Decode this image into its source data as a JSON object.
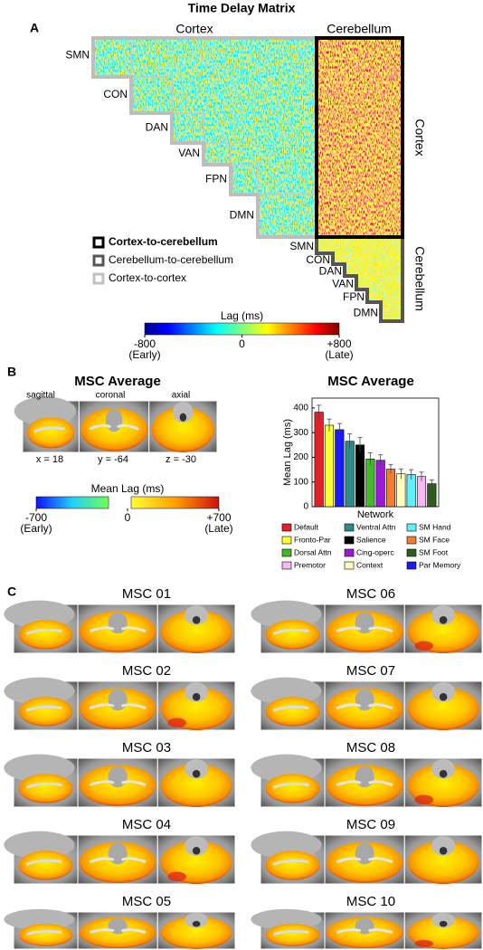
{
  "figure": {
    "title": "Time Delay Matrix",
    "panel_a": {
      "label": "A",
      "top_labels": [
        "Cortex",
        "Cerebellum"
      ],
      "side_labels": [
        "Cortex",
        "Cerebellum"
      ],
      "cortex_networks": [
        "SMN",
        "CON",
        "DAN",
        "VAN",
        "FPN",
        "DMN"
      ],
      "cerebellum_networks": [
        "SMN",
        "CON",
        "DAN",
        "VAN",
        "FPN",
        "DMN"
      ],
      "legend": [
        "Cortex-to-cerebellum",
        "Cerebellum-to-cerebellum",
        "Cortex-to-cortex"
      ],
      "colorbar": {
        "title": "Lag (ms)",
        "lim": [
          -800,
          800
        ],
        "ticks": [
          -800,
          0,
          {
            "value": 800,
            "label": "+800"
          }
        ],
        "ends": [
          "(Early)",
          "(Late)"
        ]
      }
    },
    "panel_b": {
      "label": "B",
      "title": "MSC Average",
      "views": [
        "sagittal",
        "coronal",
        "axial"
      ],
      "coords": [
        "x = 18",
        "y = -64",
        "z = -30"
      ],
      "colorbar": {
        "title": "Mean Lag  (ms)",
        "lim": [
          -700,
          700
        ],
        "ticks": [
          -700,
          0,
          {
            "value": 700,
            "label": "+700"
          }
        ],
        "ends": [
          "(Early)",
          "(Late)"
        ]
      }
    },
    "panel_c": {
      "label": "C",
      "subjects": [
        "MSC 01",
        "MSC 02",
        "MSC 03",
        "MSC 04",
        "MSC 05",
        "MSC 06",
        "MSC 07",
        "MSC 08",
        "MSC 09",
        "MSC 10"
      ]
    }
  },
  "chart_data": {
    "type": "bar",
    "title": "MSC Average",
    "y_label": "Mean Lag (ms)",
    "x_label": "Network",
    "ylim": [
      0,
      440
    ],
    "yticks": [
      0,
      100,
      200,
      300,
      400
    ],
    "categories": [
      "Default",
      "Fronto-Par",
      "Par Memory",
      "Ventral Attn",
      "Salience",
      "Dorsal Attn",
      "Cing-operc",
      "SM Face",
      "Context",
      "SM Hand",
      "Premotor",
      "SM Foot"
    ],
    "colors": [
      "#e0202a",
      "#ffff33",
      "#1a1aff",
      "#2f8a88",
      "#000000",
      "#44b82a",
      "#9a1ad6",
      "#f08030",
      "#ffffc0",
      "#60f0f8",
      "#f8b8f0",
      "#2e5e1e"
    ],
    "values": [
      383,
      330,
      312,
      265,
      250,
      193,
      188,
      152,
      133,
      130,
      122,
      93
    ],
    "errors": [
      28,
      25,
      25,
      30,
      30,
      25,
      22,
      18,
      20,
      20,
      18,
      15
    ]
  }
}
